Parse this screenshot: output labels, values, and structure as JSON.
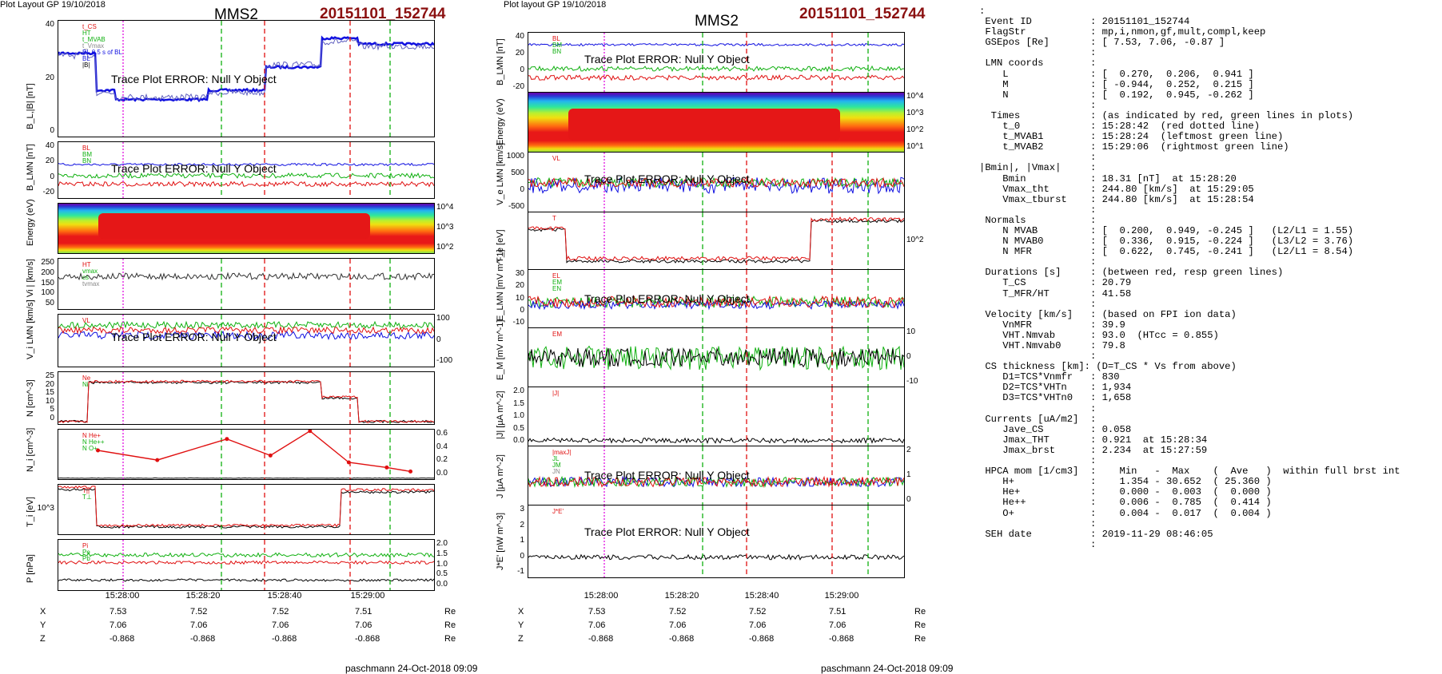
{
  "layout_label": "Plot Layout GP 19/10/2018",
  "layout_label_2": "Plot layout GP 19/10/2018",
  "spacecraft": "MMS2",
  "event_id": "20151101_152744",
  "footer": "paschmann 24-Oct-2018 09:09",
  "error_text": "Trace Plot ERROR: Null Y Object",
  "colors": {
    "event": "#8b1010",
    "red": "#e01010",
    "green": "#10b010",
    "blue": "#1010e0",
    "magenta": "#e010e0"
  },
  "left_plot": {
    "panels": [
      {
        "ylabel": "B_L,|B| [nT]",
        "yticks": [
          "40",
          "20",
          "0"
        ],
        "legend": [
          "t_CS",
          "HT",
          "t_MVAB",
          "t_Vmax",
          "BL 0.5 s of BL",
          "BL",
          "|B|"
        ]
      },
      {
        "ylabel": "B_LMN [nT]",
        "yticks": [
          "40",
          "20",
          "0",
          "-20"
        ],
        "legend": [
          "BL",
          "BM",
          "BN"
        ]
      },
      {
        "ylabel": "Energy (eV)",
        "rticks": [
          "10^4",
          "10^3",
          "10^2"
        ]
      },
      {
        "ylabel": "| Vi | [km/s]",
        "yticks": [
          "250",
          "200",
          "150",
          "100",
          "50"
        ],
        "legend": [
          "HT",
          "vmax",
          "cs",
          "tvmax"
        ]
      },
      {
        "ylabel": "V_i LMN [km/s]",
        "rticks": [
          "100",
          "0",
          "-100"
        ],
        "legend": [
          "VL"
        ]
      },
      {
        "ylabel": "N [cm^-3]",
        "yticks": [
          "25",
          "20",
          "15",
          "10",
          "5",
          "0"
        ],
        "legend": [
          "Ne",
          "Ni"
        ]
      },
      {
        "ylabel": "N_i [cm^-3]",
        "rticks": [
          "0.6",
          "0.4",
          "0.2",
          "0.0"
        ],
        "legend": [
          "N  He+",
          "N  He++",
          "N  O+"
        ]
      },
      {
        "ylabel": "T_i [eV]",
        "yticks": [
          "10^3"
        ],
        "legend": [
          "T||",
          "T⊥"
        ]
      },
      {
        "ylabel": "P [nPa]",
        "rticks": [
          "2.0",
          "1.5",
          "1.0",
          "0.5",
          "0.0"
        ],
        "legend": [
          "Pi",
          "Pe",
          "Pb"
        ]
      }
    ],
    "xticks": [
      "15:28:00",
      "15:28:20",
      "15:28:40",
      "15:29:00"
    ],
    "positions": [
      {
        "axis": "X",
        "values": [
          "7.53",
          "7.52",
          "7.52",
          "7.51"
        ],
        "unit": "Re"
      },
      {
        "axis": "Y",
        "values": [
          "7.06",
          "7.06",
          "7.06",
          "7.06"
        ],
        "unit": "Re"
      },
      {
        "axis": "Z",
        "values": [
          "-0.868",
          "-0.868",
          "-0.868",
          "-0.868"
        ],
        "unit": "Re"
      }
    ]
  },
  "right_plot": {
    "panels": [
      {
        "ylabel": "B_LMN [nT]",
        "yticks": [
          "40",
          "20",
          "0",
          "-20"
        ],
        "legend": [
          "BL",
          "BM",
          "BN"
        ]
      },
      {
        "ylabel": "Energy (eV)",
        "rticks": [
          "10^4",
          "10^3",
          "10^2",
          "10^1"
        ]
      },
      {
        "ylabel": "V_e LMN [km/s]",
        "yticks": [
          "1000",
          "500",
          "0",
          "-500"
        ],
        "legend": [
          "VL"
        ]
      },
      {
        "ylabel": "T_e [eV]",
        "rticks": [
          "10^2"
        ],
        "legend": [
          "T"
        ]
      },
      {
        "ylabel": "E_LMN [mV m^-1]",
        "yticks": [
          "30",
          "20",
          "10",
          "0",
          "-10"
        ],
        "legend": [
          "EL",
          "EM",
          "EN"
        ]
      },
      {
        "ylabel": "E_M [mV m^-1]",
        "rticks": [
          "10",
          "0",
          "-10"
        ],
        "legend": [
          "EM"
        ]
      },
      {
        "ylabel": "|J| [µA m^-2]",
        "yticks": [
          "2.0",
          "1.5",
          "1.0",
          "0.5",
          "0.0"
        ],
        "legend": [
          "|J|"
        ]
      },
      {
        "ylabel": "J [µA m^-2]",
        "rticks": [
          "2",
          "1",
          "0"
        ],
        "legend": [
          "|maxJ|",
          "JL",
          "JM",
          "JN"
        ]
      },
      {
        "ylabel": "J*E' [nW m^-3]",
        "yticks": [
          "3",
          "2",
          "1",
          "0",
          "-1"
        ],
        "legend": [
          "J*E'"
        ]
      }
    ],
    "xticks": [
      "15:28:00",
      "15:28:20",
      "15:28:40",
      "15:29:00"
    ],
    "positions": [
      {
        "axis": "X",
        "values": [
          "7.53",
          "7.52",
          "7.52",
          "7.51"
        ],
        "unit": "Re"
      },
      {
        "axis": "Y",
        "values": [
          "7.06",
          "7.06",
          "7.06",
          "7.06"
        ],
        "unit": "Re"
      },
      {
        "axis": "Z",
        "values": [
          "-0.868",
          "-0.868",
          "-0.868",
          "-0.868"
        ],
        "unit": "Re"
      }
    ]
  },
  "info_lines": [
    ":",
    " Event ID          : 20151101_152744",
    " FlagStr           : mp,i,nmon,gf,mult,compl,keep",
    " GSEpos [Re]       : [ 7.53, 7.06, -0.87 ]",
    "                   :",
    " LMN coords        :",
    "    L              : [  0.270,  0.206,  0.941 ]",
    "    M              : [ -0.944,  0.252,  0.215 ]",
    "    N              : [  0.192,  0.945, -0.262 ]",
    "                   :",
    "  Times            : (as indicated by red, green lines in plots)",
    "    t_0            : 15:28:42  (red dotted line)",
    "    t_MVAB1        : 15:28:24  (leftmost green line)",
    "    t_MVAB2        : 15:29:06  (rightmost green line)",
    "                   :",
    "|Bmin|, |Vmax|     :",
    "    Bmin           : 18.31 [nT]  at 15:28:20",
    "    Vmax_tht       : 244.80 [km/s]  at 15:29:05",
    "    Vmax_tburst    : 244.80 [km/s]  at 15:28:54",
    "                   :",
    " Normals           :",
    "    N MVAB         : [  0.200,  0.949, -0.245 ]   (L2/L1 = 1.55)",
    "    N MVAB0        : [  0.336,  0.915, -0.224 ]   (L3/L2 = 3.76)",
    "    N MFR          : [  0.622,  0.745, -0.241 ]   (L2/L1 = 8.54)",
    "                   :",
    " Durations [s]     : (between red, resp green lines)",
    "    T_CS           : 20.79",
    "    T_MFR/HT       : 41.58",
    "                   :",
    " Velocity [km/s]   : (based on FPI ion data)",
    "    VnMFR          : 39.9",
    "    VHT.Nmvab      : 93.0  (HTcc = 0.855)",
    "    VHT.Nmvab0     : 79.8",
    "                   :",
    " CS thickness [km]: (D=T_CS * Vs from above)",
    "    D1=TCS*Vnmfr   : 830",
    "    D2=TCS*VHTn    : 1,934",
    "    D3=TCS*VHTn0   : 1,658",
    "                   :",
    " Currents [uA/m2]  :",
    "    Jave_CS        : 0.058",
    "    Jmax_THT       : 0.921  at 15:28:34",
    "    Jmax_brst      : 2.234  at 15:27:59",
    "                   :",
    " HPCA mom [1/cm3]  :    Min   -  Max    (  Ave   )  within full brst int",
    "    H+             :    1.354 - 30.652  ( 25.360 )",
    "    He+            :    0.000 -  0.003  (  0.000 )",
    "    He++           :    0.006 -  0.785  (  0.414 )",
    "    O+             :    0.004 -  0.017  (  0.004 )",
    "                   :",
    " SEH date          : 2019-11-29 08:46:05",
    "                   :"
  ],
  "chart_data": [
    {
      "type": "line",
      "title": "MMS2 20151101_152744",
      "x": [
        "15:28:00",
        "15:28:20",
        "15:28:40",
        "15:29:00"
      ],
      "series": [
        {
          "name": "N  He++",
          "x": [
            "15:27:51",
            "15:27:58",
            "15:28:08",
            "15:28:17",
            "15:28:25",
            "15:28:35",
            "15:28:46",
            "15:28:53"
          ],
          "values": [
            0.42,
            0.25,
            0.62,
            0.33,
            0.76,
            0.21,
            0.12,
            0.05
          ]
        },
        {
          "name": "N  He+",
          "values": [
            0.0,
            0.0,
            0.0,
            0.0
          ]
        },
        {
          "name": "N  O+",
          "values": [
            0.01,
            0.01,
            0.01,
            0.01
          ]
        }
      ],
      "ylabel": "N_i [cm^-3]",
      "ylim": [
        0.0,
        0.7
      ]
    }
  ]
}
